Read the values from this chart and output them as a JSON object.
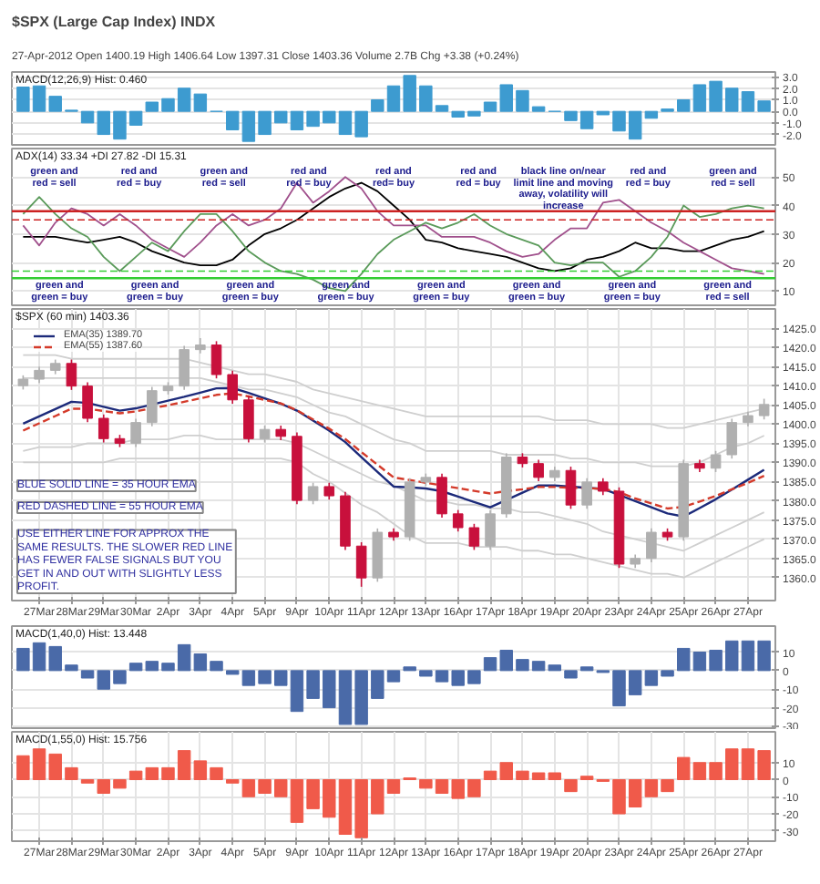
{
  "chart_data": [
    {
      "type": "bar",
      "title": "$SPX (Large Cap Index) INDX",
      "subtitle": "27-Apr-2012    Open 1400.19  High 1406.64  Low 1397.31  Close 1403.36  Volume 2.7B  Chg +3.38 (+0.24%)",
      "annotations": [
        "MACD(12,26,9) Hist: 0.460"
      ],
      "categories": [
        null,
        null,
        null,
        null,
        null,
        null,
        null,
        null,
        null,
        null,
        null,
        null,
        null,
        null,
        null,
        null,
        null,
        null,
        null,
        null,
        null,
        null,
        null,
        null,
        null,
        null,
        null,
        null,
        null,
        null,
        null,
        null,
        null,
        null,
        null,
        null,
        null,
        null,
        null,
        null,
        null,
        null,
        null,
        null,
        null,
        null,
        null
      ],
      "series": [
        {
          "color": "#3d9bd0",
          "values": [
            2.1,
            2.2,
            1.3,
            0.1,
            -1.0,
            -2.0,
            -2.4,
            -1.2,
            0.8,
            1.1,
            2.0,
            1.5,
            0,
            -1.6,
            -2.6,
            -2.0,
            -1.0,
            -1.6,
            -1.3,
            -1.0,
            -2.0,
            -2.2,
            1.0,
            2.2,
            3.1,
            2.2,
            0.5,
            -0.5,
            -0.4,
            0.8,
            2.3,
            1.8,
            0.4,
            0,
            -0.8,
            -1.5,
            -0.3,
            -1.7,
            -2.4,
            -0.6,
            0.2,
            1.0,
            2.3,
            2.6,
            2.0,
            1.7,
            0.9
          ]
        }
      ],
      "ylim": [
        -2.9,
        3.4
      ],
      "yticks": [
        {
          "value": -2,
          "label": "-2.0"
        },
        {
          "value": -1,
          "label": "-1.0"
        },
        {
          "value": 0,
          "label": "0.0"
        },
        {
          "value": 1,
          "label": "1.0"
        },
        {
          "value": 2,
          "label": "2.0"
        },
        {
          "value": 3,
          "label": "3.0"
        }
      ],
      "grid": "y",
      "tick_labels": "y"
    },
    {
      "type": "line",
      "title": "ADX(14) 33.34  +DI 27.82  -DI 15.31",
      "categories": [
        null,
        null,
        null,
        null,
        null,
        null,
        null,
        null,
        null,
        null,
        null,
        null,
        null,
        null,
        null,
        null,
        null,
        null,
        null,
        null,
        null,
        null,
        null,
        null,
        null,
        null,
        null,
        null,
        null,
        null,
        null,
        null,
        null,
        null,
        null,
        null,
        null,
        null,
        null,
        null,
        null,
        null,
        null,
        null,
        null,
        null,
        null
      ],
      "series": [
        {
          "color": "#000000",
          "values": [
            29,
            29,
            29,
            28,
            27,
            28,
            29,
            27,
            24,
            22,
            20,
            19,
            19,
            21,
            26,
            30,
            32,
            35,
            39,
            43,
            46,
            48,
            45,
            40,
            35,
            28,
            27,
            25,
            24,
            23,
            22,
            20,
            18,
            17,
            18,
            21,
            22,
            24,
            27,
            25,
            25,
            24,
            24,
            26,
            28,
            29,
            31
          ]
        },
        {
          "color": "#a0508c",
          "values": [
            33,
            26,
            34,
            39,
            37,
            33,
            37,
            33,
            28,
            25,
            22,
            27,
            33,
            37,
            33,
            35,
            39,
            48,
            41,
            45,
            50,
            46,
            38,
            33,
            33,
            33,
            29,
            29,
            29,
            27,
            24,
            22,
            23,
            28,
            32,
            32,
            41,
            42,
            38,
            34,
            31,
            27,
            24,
            21,
            18,
            17,
            16
          ]
        },
        {
          "color": "#5a9a5a",
          "values": [
            37,
            43,
            37,
            32,
            29,
            22,
            17,
            22,
            27,
            24,
            31,
            37,
            37,
            31,
            24,
            20,
            17,
            16,
            14,
            11,
            10,
            16,
            23,
            28,
            31,
            34,
            32,
            34,
            37,
            33,
            30,
            28,
            26,
            20,
            19,
            20,
            20,
            15,
            17,
            22,
            29,
            40,
            36,
            37,
            39,
            40,
            39
          ]
        }
      ],
      "ref_lines": [
        {
          "axis": "y",
          "value": 38,
          "color": "#cc2222",
          "line_style": "solid"
        },
        {
          "axis": "y",
          "value": 35,
          "color": "#cc2222",
          "line_style": "dashed"
        },
        {
          "axis": "y",
          "value": 17,
          "color": "#33cc33",
          "line_style": "dashed"
        },
        {
          "axis": "y",
          "value": 14.5,
          "color": "#33cc33",
          "line_style": "solid"
        }
      ],
      "annotations": [
        "green and\nred = sell",
        "red and\nred = buy",
        "green and\nred = sell",
        "red and\nred = buy",
        "red and\nred= buy",
        "red and\nred = buy",
        "black line on/near\nlimit line and moving\naway, volatility will\nincrease",
        "red and\nred = buy",
        "green and\nred = sell",
        "green and\ngreen = buy",
        "green and\ngreen = buy",
        "green and\ngreen = buy",
        "green and\ngreen = buy",
        "green and\ngreen = buy",
        "green and\ngreen = buy",
        "green and\ngreen = buy",
        "green and\nred = sell"
      ],
      "ylim": [
        5,
        60
      ],
      "yticks": [
        10,
        20,
        30,
        40,
        50
      ],
      "grid": "y",
      "tick_labels": "y"
    },
    {
      "type": "candlestick",
      "title": "$SPX (60 min) 1403.36",
      "categories": [
        null,
        "27Mar",
        null,
        "28Mar",
        null,
        "29Mar",
        null,
        "30Mar",
        null,
        "2Apr",
        null,
        "3Apr",
        null,
        "4Apr",
        null,
        "5Apr",
        null,
        "9Apr",
        null,
        "10Apr",
        null,
        "11Apr",
        null,
        "12Apr",
        null,
        "13Apr",
        null,
        "16Apr",
        null,
        "17Apr",
        null,
        "18Apr",
        null,
        "19Apr",
        null,
        "20Apr",
        null,
        "23Apr",
        null,
        "24Apr",
        null,
        "25Apr",
        null,
        "26Apr",
        null,
        "27Apr",
        null
      ],
      "ohlc": [
        [
          1410.0,
          1412.7,
          1409.0,
          1411.7
        ],
        [
          1411.7,
          1415.0,
          1410.7,
          1414.0
        ],
        [
          1414.0,
          1416.8,
          1413.0,
          1415.8
        ],
        [
          1415.8,
          1416.8,
          1408.9,
          1409.9
        ],
        [
          1409.9,
          1410.9,
          1400.5,
          1401.5
        ],
        [
          1401.5,
          1402.5,
          1395.2,
          1396.2
        ],
        [
          1396.2,
          1397.2,
          1394.0,
          1395.0
        ],
        [
          1395.0,
          1401.4,
          1394.0,
          1400.4
        ],
        [
          1400.4,
          1409.7,
          1399.4,
          1408.7
        ],
        [
          1408.7,
          1410.9,
          1407.7,
          1409.9
        ],
        [
          1409.9,
          1420.4,
          1408.9,
          1419.4
        ],
        [
          1419.4,
          1422.4,
          1418.4,
          1420.6
        ],
        [
          1420.6,
          1421.6,
          1411.9,
          1412.9
        ],
        [
          1412.9,
          1413.9,
          1405.3,
          1406.3
        ],
        [
          1406.3,
          1407.3,
          1395.2,
          1396.2
        ],
        [
          1396.2,
          1399.6,
          1395.2,
          1398.6
        ],
        [
          1398.6,
          1399.6,
          1395.8,
          1396.8
        ],
        [
          1396.8,
          1397.8,
          1379.1,
          1380.1
        ],
        [
          1380.1,
          1384.7,
          1379.1,
          1383.7
        ],
        [
          1383.7,
          1384.7,
          1380.3,
          1381.3
        ],
        [
          1381.3,
          1382.3,
          1367.2,
          1368.2
        ],
        [
          1368.2,
          1369.2,
          1357.6,
          1359.9
        ],
        [
          1359.9,
          1372.8,
          1358.9,
          1371.8
        ],
        [
          1371.8,
          1372.8,
          1369.6,
          1370.6
        ],
        [
          1370.6,
          1385.9,
          1369.6,
          1384.9
        ],
        [
          1384.9,
          1387.1,
          1383.9,
          1386.1
        ],
        [
          1386.1,
          1387.1,
          1375.6,
          1376.6
        ],
        [
          1376.6,
          1377.6,
          1372.0,
          1373.0
        ],
        [
          1373.0,
          1374.0,
          1367.2,
          1368.2
        ],
        [
          1368.2,
          1377.6,
          1367.2,
          1376.6
        ],
        [
          1376.6,
          1392.4,
          1375.6,
          1391.4
        ],
        [
          1391.4,
          1392.4,
          1388.7,
          1389.7
        ],
        [
          1389.7,
          1390.7,
          1385.1,
          1386.1
        ],
        [
          1386.1,
          1388.9,
          1385.1,
          1387.9
        ],
        [
          1387.9,
          1388.9,
          1377.9,
          1378.9
        ],
        [
          1378.9,
          1385.9,
          1377.9,
          1384.9
        ],
        [
          1384.9,
          1385.9,
          1381.5,
          1382.5
        ],
        [
          1382.5,
          1383.5,
          1362.5,
          1363.5
        ],
        [
          1363.5,
          1366.0,
          1362.5,
          1365.0
        ],
        [
          1365.0,
          1372.8,
          1364.0,
          1371.8
        ],
        [
          1371.8,
          1372.8,
          1369.6,
          1370.6
        ],
        [
          1370.6,
          1390.7,
          1369.6,
          1389.7
        ],
        [
          1389.7,
          1390.7,
          1387.5,
          1388.5
        ],
        [
          1388.5,
          1393.0,
          1387.5,
          1392.0
        ],
        [
          1392.0,
          1401.4,
          1391.0,
          1400.4
        ],
        [
          1400.4,
          1403.2,
          1399.4,
          1402.2
        ],
        [
          1402.2,
          1406.6,
          1401.2,
          1405.1
        ]
      ],
      "colors": [
        "#b0b0b0",
        "#b0b0b0",
        "#b0b0b0",
        "#c8103c",
        "#c8103c",
        "#c8103c",
        "#c8103c",
        "#b0b0b0",
        "#b0b0b0",
        "#b0b0b0",
        "#b0b0b0",
        "#b0b0b0",
        "#c8103c",
        "#c8103c",
        "#c8103c",
        "#b0b0b0",
        "#c8103c",
        "#c8103c",
        "#b0b0b0",
        "#c8103c",
        "#c8103c",
        "#c8103c",
        "#b0b0b0",
        "#c8103c",
        "#b0b0b0",
        "#b0b0b0",
        "#c8103c",
        "#c8103c",
        "#c8103c",
        "#b0b0b0",
        "#b0b0b0",
        "#c8103c",
        "#c8103c",
        "#b0b0b0",
        "#c8103c",
        "#b0b0b0",
        "#c8103c",
        "#c8103c",
        "#b0b0b0",
        "#b0b0b0",
        "#c8103c",
        "#b0b0b0",
        "#c8103c",
        "#b0b0b0",
        "#b0b0b0",
        "#b0b0b0",
        "#b0b0b0"
      ],
      "series": [
        {
          "type": "line",
          "color": "#cfcfcf",
          "values": [
            1418,
            1418,
            1418,
            1417,
            1417,
            1417,
            1417,
            1417,
            1417,
            1417,
            1417,
            1416,
            1415,
            1414,
            1413,
            1413,
            1412,
            1411,
            1409,
            1408,
            1407,
            1406,
            1405,
            1404,
            1403,
            1402,
            1402,
            1402,
            1402,
            1402,
            1402,
            1402,
            1402,
            1401,
            1401,
            1401,
            1400,
            1400,
            1400,
            1400,
            1399,
            1399,
            1400,
            1401,
            1402,
            1403,
            1404
          ]
        },
        {
          "type": "line",
          "color": "#cfcfcf",
          "values": [
            1412,
            1412,
            1412,
            1412,
            1412,
            1412,
            1412,
            1412,
            1412,
            1412,
            1412,
            1412,
            1411,
            1410,
            1409,
            1409,
            1408,
            1407,
            1405,
            1403,
            1402,
            1400,
            1398,
            1396,
            1395,
            1393,
            1393,
            1393,
            1393,
            1393,
            1392,
            1392,
            1392,
            1392,
            1391,
            1391,
            1390,
            1390,
            1390,
            1389,
            1389,
            1389,
            1390,
            1392,
            1394,
            1395,
            1397
          ]
        },
        {
          "type": "line",
          "color": "#cfcfcf",
          "values": [
            1393,
            1394,
            1394,
            1394,
            1395,
            1395,
            1395,
            1396,
            1396,
            1396,
            1397,
            1397,
            1396,
            1396,
            1396,
            1396,
            1396,
            1395,
            1393,
            1391,
            1389,
            1387,
            1385,
            1384,
            1382,
            1380,
            1380,
            1379,
            1379,
            1378,
            1378,
            1377,
            1377,
            1376,
            1375,
            1374,
            1372,
            1371,
            1370,
            1369,
            1368,
            1367,
            1369,
            1371,
            1373,
            1375,
            1377
          ]
        },
        {
          "type": "line",
          "color": "#cfcfcf",
          "values": [
            1390,
            1390,
            1390,
            1390,
            1390,
            1390,
            1391,
            1391,
            1391,
            1391,
            1391,
            1391,
            1391,
            1391,
            1391,
            1391,
            1391,
            1390,
            1387,
            1385,
            1382,
            1379,
            1377,
            1374,
            1371,
            1369,
            1369,
            1369,
            1368,
            1368,
            1368,
            1367,
            1367,
            1366,
            1366,
            1365,
            1364,
            1363,
            1362,
            1361,
            1361,
            1360,
            1362,
            1364,
            1366,
            1368,
            1370
          ]
        },
        {
          "type": "line",
          "name": "EMA(35) 1389.70",
          "color": "#1c2a7a",
          "line_style": "solid",
          "values": [
            1400.1,
            1402.0,
            1403.9,
            1405.8,
            1405.5,
            1404.5,
            1403.5,
            1404.1,
            1405.1,
            1406.1,
            1407.1,
            1408.2,
            1409.3,
            1409.4,
            1408.1,
            1406.7,
            1405.3,
            1403.5,
            1400.9,
            1398.3,
            1395.3,
            1391.4,
            1387.5,
            1383.7,
            1383.5,
            1383.2,
            1382.5,
            1381.1,
            1379.7,
            1378.3,
            1380.2,
            1382.1,
            1384.0,
            1384.0,
            1383.7,
            1383.4,
            1383.1,
            1381.5,
            1379.9,
            1378.3,
            1376.7,
            1375.9,
            1378.1,
            1380.4,
            1382.9,
            1385.5,
            1388.1
          ]
        },
        {
          "type": "line",
          "name": "EMA(55) 1387.60",
          "color": "#d43a2a",
          "line_style": "dashed",
          "values": [
            1398.3,
            1400.2,
            1402.1,
            1404.0,
            1404.0,
            1403.4,
            1402.8,
            1403.3,
            1404.1,
            1404.9,
            1405.8,
            1406.7,
            1407.6,
            1408.0,
            1407.2,
            1406.3,
            1405.4,
            1403.6,
            1401.2,
            1398.8,
            1396.1,
            1392.7,
            1389.4,
            1386.1,
            1385.4,
            1384.7,
            1384.0,
            1383.3,
            1382.6,
            1381.9,
            1382.5,
            1383.0,
            1383.6,
            1383.6,
            1383.4,
            1383.3,
            1383.1,
            1382.3,
            1380.6,
            1379.3,
            1378.0,
            1378.4,
            1379.8,
            1381.3,
            1383.0,
            1384.7,
            1386.5
          ]
        }
      ],
      "annotations": [
        "BLUE SOLID LINE = 35 HOUR EMA",
        "RED DASHED LINE = 55 HOUR EMA",
        "USE EITHER LINE FOR APPROX THE\nSAME RESULTS.  THE SLOWER RED LINE\nHAS FEWER FALSE SIGNALS BUT YOU\nGET IN AND OUT WITH SLIGHTLY LESS\nPROFIT."
      ],
      "ylim": [
        1354,
        1430
      ],
      "yticks": [
        {
          "value": 1360,
          "label": "1360.0"
        },
        {
          "value": 1365,
          "label": "1365.0"
        },
        {
          "value": 1370,
          "label": "1370.0"
        },
        {
          "value": 1375,
          "label": "1375.0"
        },
        {
          "value": 1380,
          "label": "1380.0"
        },
        {
          "value": 1385,
          "label": "1385.0"
        },
        {
          "value": 1390,
          "label": "1390.0"
        },
        {
          "value": 1395,
          "label": "1395.0"
        },
        {
          "value": 1400,
          "label": "1400.0"
        },
        {
          "value": 1405,
          "label": "1405.0"
        },
        {
          "value": 1410,
          "label": "1410.0"
        },
        {
          "value": 1415,
          "label": "1415.0"
        },
        {
          "value": 1420,
          "label": "1420.0"
        },
        {
          "value": 1425,
          "label": "1425.0"
        }
      ],
      "grid": true,
      "legend": "top left"
    },
    {
      "type": "bar",
      "title": "MACD(1,40,0) Hist: 13.448",
      "categories": [
        null,
        null,
        null,
        null,
        null,
        null,
        null,
        null,
        null,
        null,
        null,
        null,
        null,
        null,
        null,
        null,
        null,
        null,
        null,
        null,
        null,
        null,
        null,
        null,
        null,
        null,
        null,
        null,
        null,
        null,
        null,
        null,
        null,
        null,
        null,
        null,
        null,
        null,
        null,
        null,
        null,
        null,
        null,
        null,
        null,
        null,
        null
      ],
      "series": [
        {
          "color": "#4a6aa8",
          "values": [
            12,
            15,
            13,
            3,
            -4,
            -10,
            -7,
            4,
            5,
            4,
            14,
            9,
            5,
            -2,
            -8,
            -7,
            -8,
            -22,
            -15,
            -20,
            -29,
            -29,
            -15,
            -6,
            2,
            -3,
            -6,
            -8,
            -7,
            7,
            11,
            6,
            5,
            3,
            -4,
            2,
            -1,
            -19,
            -13,
            -8,
            -3,
            12,
            10,
            11,
            16,
            16,
            16
          ]
        }
      ],
      "ylim": [
        -31,
        24
      ],
      "yticks": [
        -30,
        -20,
        -10,
        0,
        10
      ],
      "grid": "y",
      "tick_labels": "y"
    },
    {
      "type": "bar",
      "title": "MACD(1,55,0) Hist: 15.756",
      "categories": [
        null,
        "27Mar",
        null,
        "28Mar",
        null,
        "29Mar",
        null,
        "30Mar",
        null,
        "2Apr",
        null,
        "3Apr",
        null,
        "4Apr",
        null,
        "5Apr",
        null,
        "9Apr",
        null,
        "10Apr",
        null,
        "11Apr",
        null,
        "12Apr",
        null,
        "13Apr",
        null,
        "16Apr",
        null,
        "17Apr",
        null,
        "18Apr",
        null,
        "19Apr",
        null,
        "20Apr",
        null,
        "23Apr",
        null,
        "24Apr",
        null,
        "25Apr",
        null,
        "26Apr",
        null,
        "27Apr",
        null
      ],
      "series": [
        {
          "color": "#f05a4a",
          "values": [
            14,
            18,
            15,
            7,
            -2,
            -8,
            -5,
            5,
            7,
            7,
            17,
            11,
            7,
            -2,
            -10,
            -8,
            -10,
            -25,
            -17,
            -22,
            -32,
            -34,
            -20,
            -8,
            1,
            -5,
            -8,
            -11,
            -10,
            5,
            10,
            5,
            4,
            4,
            -7,
            2,
            -1,
            -20,
            -16,
            -10,
            -7,
            13,
            10,
            10,
            18,
            18,
            17
          ]
        }
      ],
      "ylim": [
        -36,
        28
      ],
      "yticks": [
        -30,
        -20,
        -10,
        0,
        10
      ],
      "grid": true
    }
  ]
}
